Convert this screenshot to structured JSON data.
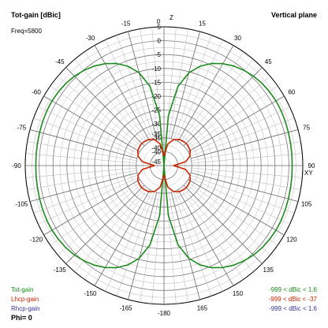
{
  "chart_data": {
    "type": "polar",
    "title": "Tot-gain [dBic]",
    "plane": "Vertical plane",
    "frequency_label": "Freq=5800",
    "axis_labels": {
      "top": "Z",
      "right": "XY"
    },
    "radial_scale": {
      "min": -45,
      "max": 5,
      "step": 5
    },
    "radial_tick_labels": [
      "5",
      "0",
      "-5",
      "-10",
      "-15",
      "-20",
      "-25",
      "-30",
      "-35",
      "-40",
      "-45"
    ],
    "angle_tick_labels": [
      "0",
      "15",
      "30",
      "45",
      "60",
      "75",
      "90",
      "105",
      "120",
      "135",
      "150",
      "165",
      "-180",
      "-165",
      "-150",
      "-135",
      "-120",
      "-105",
      "-90",
      "-75",
      "-60",
      "-45",
      "-30",
      "-15"
    ],
    "series": [
      {
        "name": "Tot-gain",
        "color": "#1a8a1a",
        "range_label": "-999 < dBic < 1.6",
        "angles": [
          0,
          5,
          10,
          15,
          20,
          25,
          30,
          35,
          40,
          45,
          50,
          55,
          60,
          65,
          70,
          75,
          80,
          85,
          90,
          95,
          100,
          105,
          110,
          115,
          120,
          125,
          130,
          135,
          140,
          145,
          150,
          155,
          160,
          165,
          170,
          175,
          180
        ],
        "values": [
          -45,
          -27,
          -16,
          -10.4,
          -6.9,
          -4.4,
          -2.6,
          -1.2,
          -0.2,
          0.6,
          1.1,
          1.4,
          1.6,
          1.6,
          1.5,
          1.4,
          1.3,
          1.25,
          1.2,
          1.25,
          1.3,
          1.4,
          1.5,
          1.6,
          1.6,
          1.4,
          1.1,
          0.6,
          -0.2,
          -1.2,
          -2.6,
          -4.4,
          -6.9,
          -10.4,
          -16,
          -27,
          -45
        ]
      },
      {
        "name": "Lhcp-gain",
        "color": "#cc2200",
        "range_label": "-999 < dBic < -37",
        "angles": [
          0,
          10,
          20,
          30,
          40,
          45,
          50,
          60,
          70,
          80,
          90,
          100,
          110,
          120,
          130,
          135,
          140,
          150,
          160,
          170,
          180,
          190,
          200,
          210,
          220,
          225,
          230,
          240,
          250,
          260,
          270,
          280,
          290,
          300,
          310,
          315,
          320,
          330,
          340,
          350,
          360
        ],
        "values": [
          -45,
          -40.5,
          -38.5,
          -37.5,
          -37.2,
          -37.1,
          -37.2,
          -37.5,
          -38.5,
          -40.5,
          -45,
          -40.5,
          -38.5,
          -37.5,
          -37.2,
          -37.1,
          -37.2,
          -37.5,
          -38.5,
          -40.5,
          -45,
          -40.5,
          -38.5,
          -37.5,
          -37.2,
          -37.1,
          -37.2,
          -37.5,
          -38.5,
          -40.5,
          -45,
          -40.5,
          -38.5,
          -37.5,
          -37.2,
          -37.1,
          -37.2,
          -37.5,
          -38.5,
          -40.5,
          -45
        ]
      },
      {
        "name": "Rhcp-gain",
        "color": "#333399",
        "range_label": "-999 < dBic < 1.6",
        "angles": [],
        "values": []
      }
    ],
    "phi_label": "Phi= 0"
  }
}
